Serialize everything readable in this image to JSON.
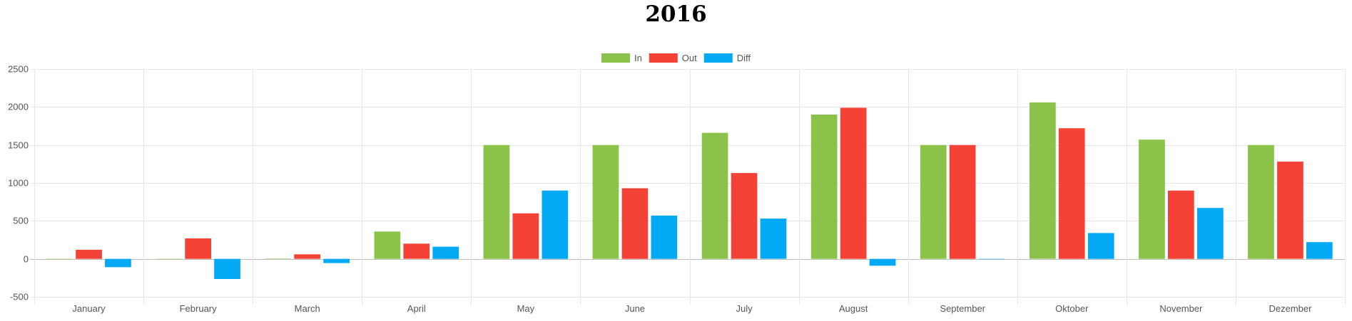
{
  "chart_data": {
    "type": "bar",
    "title": "2016",
    "categories": [
      "January",
      "February",
      "March",
      "April",
      "May",
      "June",
      "July",
      "August",
      "September",
      "Oktober",
      "November",
      "Dezember"
    ],
    "series": [
      {
        "name": "In",
        "color": "#8BC34A",
        "values": [
          0,
          0,
          5,
          360,
          1500,
          1500,
          1660,
          1900,
          1500,
          2060,
          1570,
          1500
        ]
      },
      {
        "name": "Out",
        "color": "#F44336",
        "values": [
          120,
          270,
          60,
          200,
          600,
          930,
          1130,
          1990,
          1500,
          1720,
          900,
          1280
        ]
      },
      {
        "name": "Diff",
        "color": "#03A9F4",
        "values": [
          -110,
          -265,
          -55,
          160,
          900,
          570,
          530,
          -90,
          0,
          340,
          670,
          220
        ]
      }
    ],
    "ylim": [
      -500,
      2500
    ],
    "yticks": [
      2500,
      2000,
      1500,
      1000,
      500,
      0,
      -500
    ],
    "grid": true,
    "legend": "top-center",
    "xlabel": "",
    "ylabel": ""
  }
}
